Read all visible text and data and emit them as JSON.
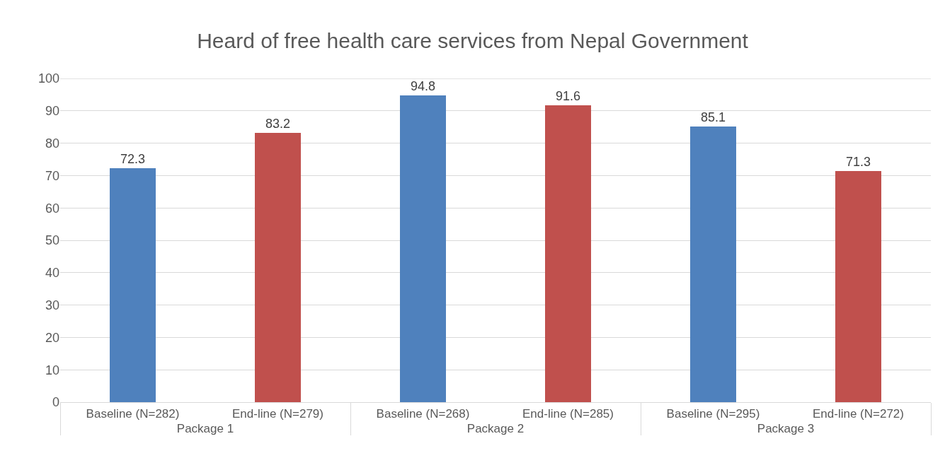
{
  "chart_data": {
    "type": "bar",
    "title": "Heard of free health care services from Nepal Government",
    "categories": [
      "Baseline (N=282)",
      "End-line (N=279)",
      "Baseline (N=268)",
      "End-line (N=285)",
      "Baseline (N=295)",
      "End-line (N=272)"
    ],
    "values": [
      72.3,
      83.2,
      94.8,
      91.6,
      85.1,
      71.3
    ],
    "colors": [
      "#4f81bd",
      "#c0504d",
      "#4f81bd",
      "#c0504d",
      "#4f81bd",
      "#c0504d"
    ],
    "annotations": [
      "Package 1",
      "Package 2",
      "Package 3"
    ],
    "ylim": [
      0,
      100
    ],
    "yticks": [
      0,
      10,
      20,
      30,
      40,
      50,
      60,
      70,
      80,
      90,
      100
    ],
    "grid": "y",
    "data_labels": true
  }
}
